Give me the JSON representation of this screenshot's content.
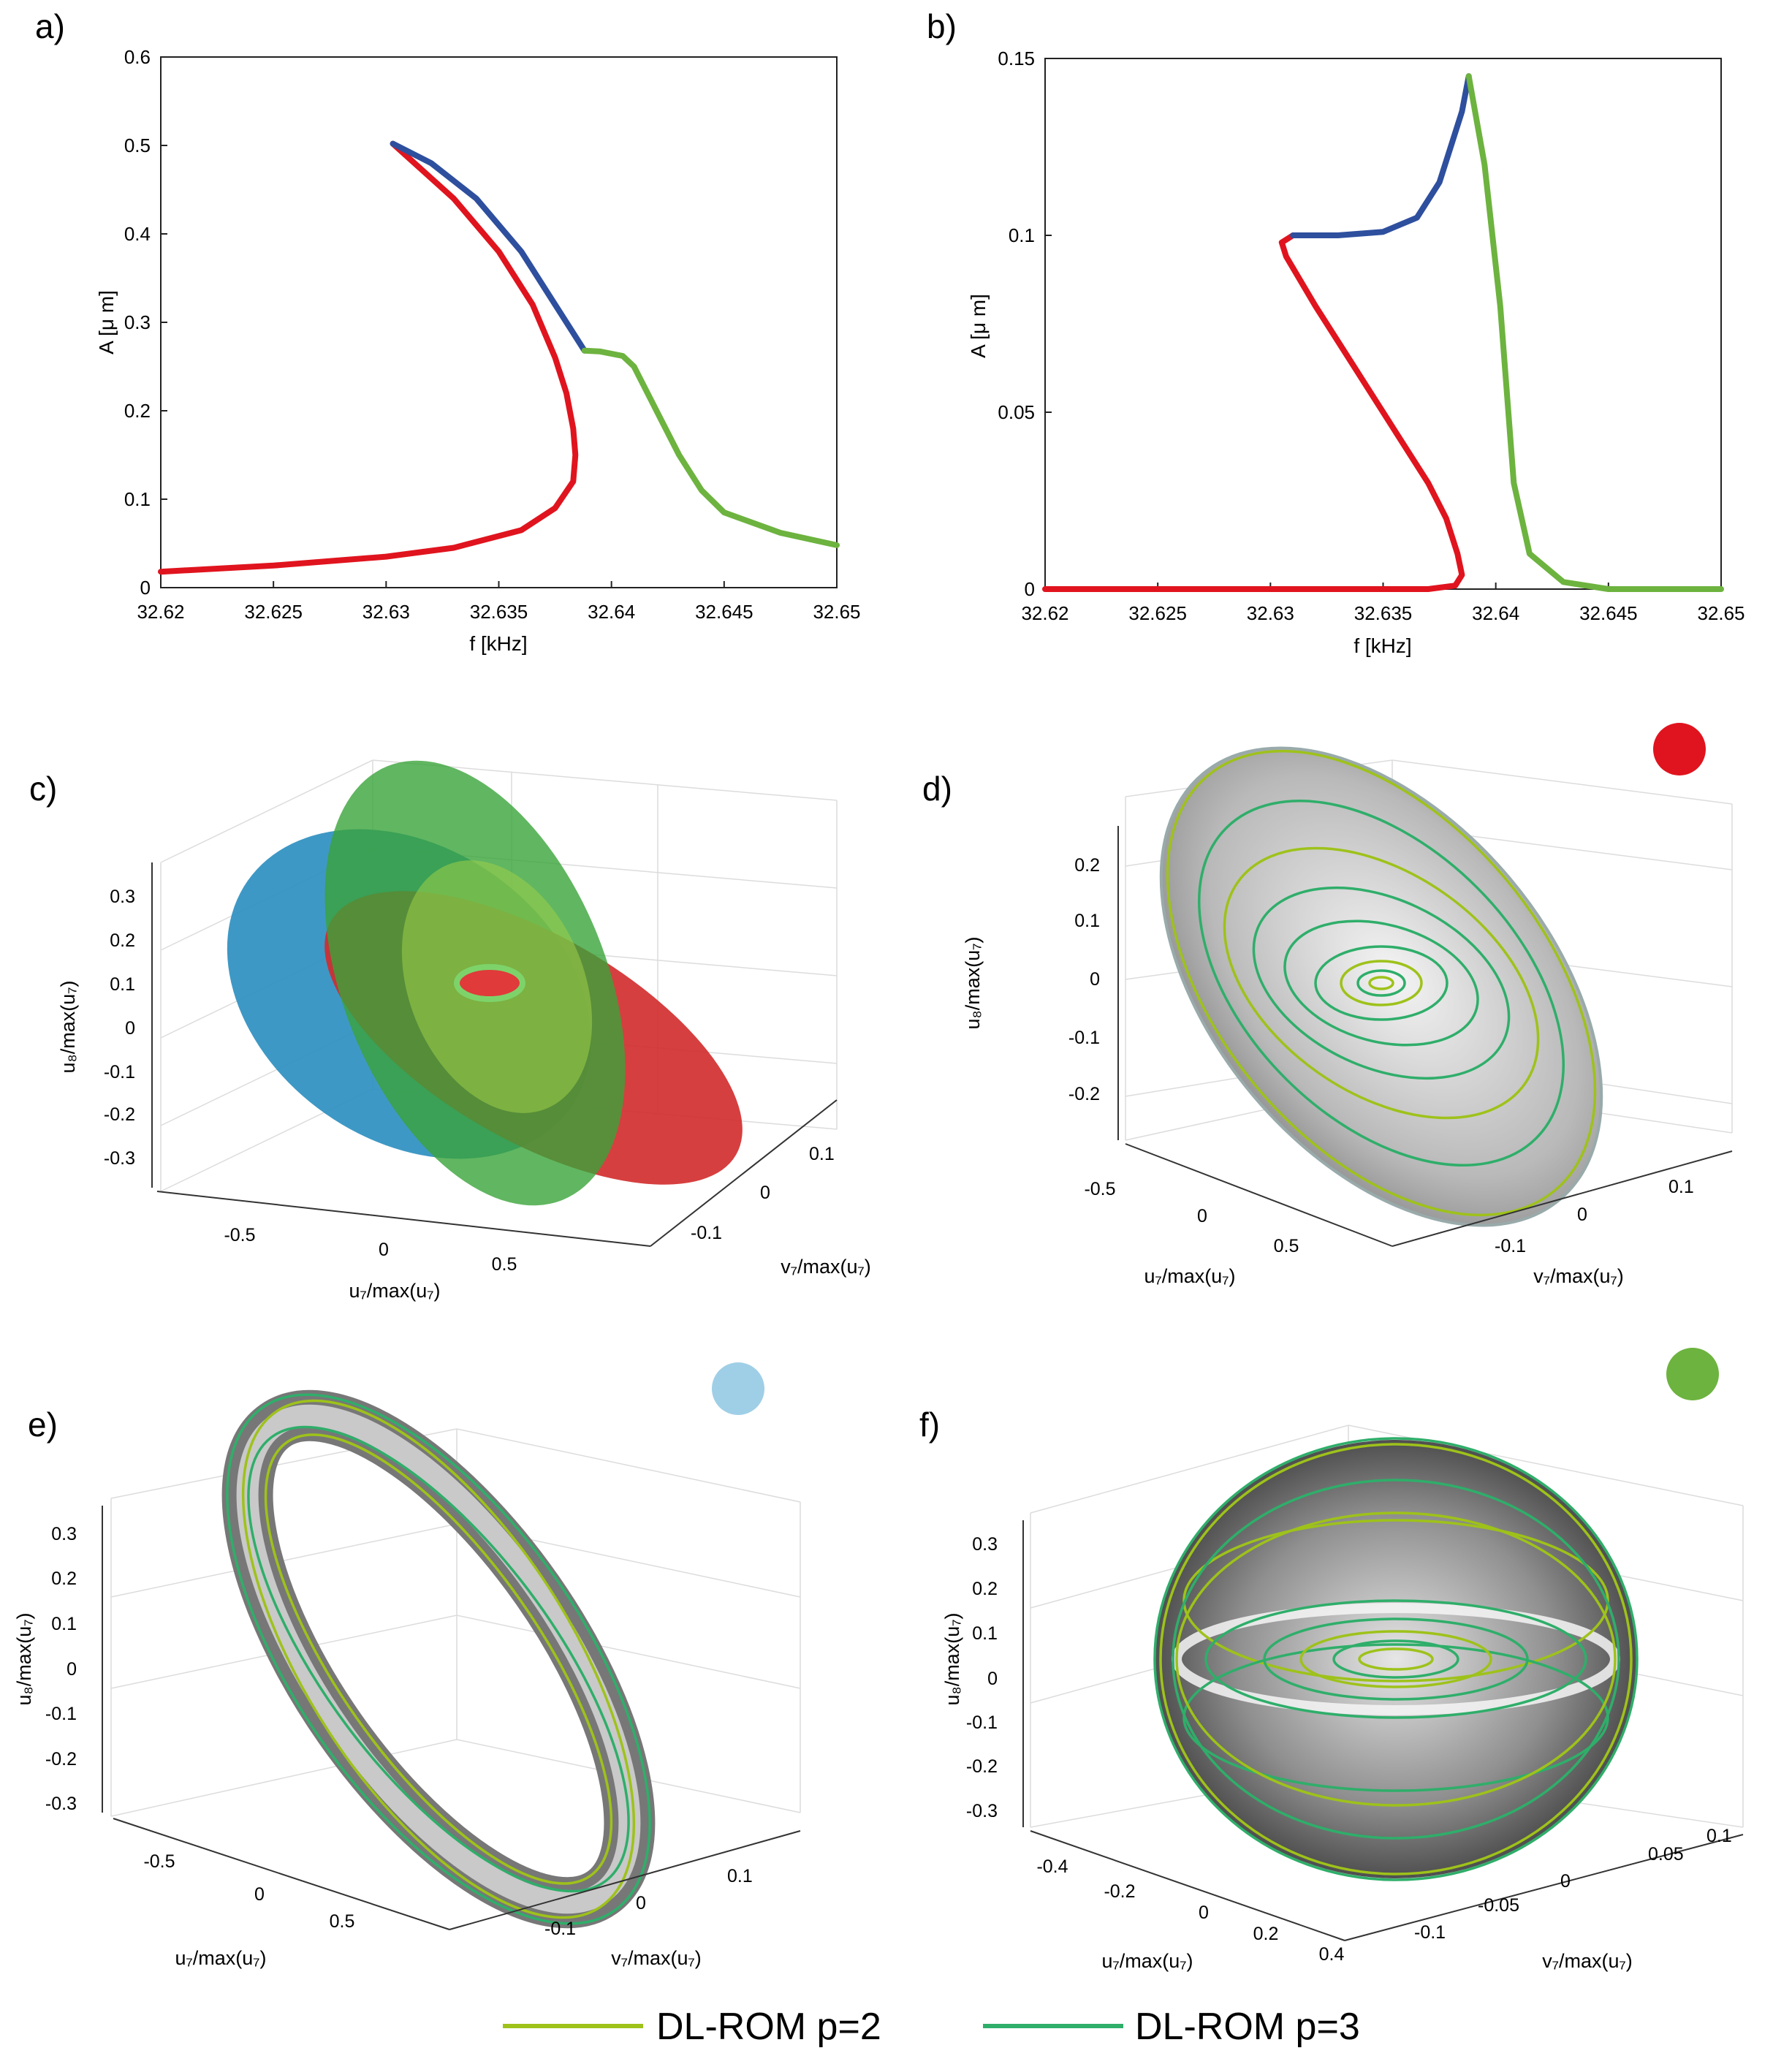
{
  "chart_data": [
    {
      "panel": "a)",
      "type": "line",
      "xlabel": "f [kHz]",
      "ylabel": "A [μ m]",
      "xlim": [
        32.62,
        32.65
      ],
      "ylim": [
        0,
        0.6
      ],
      "xticks": [
        "32.62",
        "32.625",
        "32.63",
        "32.635",
        "32.64",
        "32.645",
        "32.65"
      ],
      "yticks": [
        "0",
        "0.1",
        "0.2",
        "0.3",
        "0.4",
        "0.5",
        "0.6"
      ],
      "series": [
        {
          "name": "red",
          "color": "#e0141e",
          "x": [
            32.62,
            32.625,
            32.63,
            32.633,
            32.636,
            32.6375,
            32.6383,
            32.6384,
            32.6383,
            32.638,
            32.6375,
            32.6365,
            32.635,
            32.633,
            32.6303
          ],
          "y": [
            0.018,
            0.025,
            0.035,
            0.045,
            0.065,
            0.09,
            0.12,
            0.15,
            0.18,
            0.22,
            0.26,
            0.32,
            0.38,
            0.44,
            0.502
          ]
        },
        {
          "name": "blue",
          "color": "#2e4f9e",
          "x": [
            32.6303,
            32.632,
            32.634,
            32.636,
            32.6375,
            32.6388
          ],
          "y": [
            0.502,
            0.48,
            0.44,
            0.38,
            0.32,
            0.268
          ]
        },
        {
          "name": "green",
          "color": "#6db33f",
          "x": [
            32.6388,
            32.6395,
            32.6405,
            32.641,
            32.642,
            32.643,
            32.644,
            32.645,
            32.6475,
            32.65
          ],
          "y": [
            0.268,
            0.267,
            0.262,
            0.25,
            0.2,
            0.15,
            0.11,
            0.085,
            0.062,
            0.048
          ]
        }
      ]
    },
    {
      "panel": "b)",
      "type": "line",
      "xlabel": "f [kHz]",
      "ylabel": "A [μ m]",
      "xlim": [
        32.62,
        32.65
      ],
      "ylim": [
        0,
        0.15
      ],
      "xticks": [
        "32.62",
        "32.625",
        "32.63",
        "32.635",
        "32.64",
        "32.645",
        "32.65"
      ],
      "yticks": [
        "0",
        "0.05",
        "0.1",
        "0.15"
      ],
      "series": [
        {
          "name": "red",
          "color": "#e0141e",
          "x": [
            32.62,
            32.63,
            32.637,
            32.6382,
            32.6385,
            32.6383,
            32.6378,
            32.637,
            32.636,
            32.634,
            32.632,
            32.6307,
            32.6305,
            32.631
          ],
          "y": [
            0.0,
            0.0,
            0.0,
            0.001,
            0.004,
            0.01,
            0.02,
            0.03,
            0.04,
            0.06,
            0.08,
            0.094,
            0.098,
            0.1
          ]
        },
        {
          "name": "blue",
          "color": "#2e4f9e",
          "x": [
            32.631,
            32.633,
            32.635,
            32.6365,
            32.6375,
            32.6385,
            32.6388
          ],
          "y": [
            0.1,
            0.1,
            0.101,
            0.105,
            0.115,
            0.135,
            0.145
          ]
        },
        {
          "name": "green",
          "color": "#6db33f",
          "x": [
            32.6388,
            32.6395,
            32.6402,
            32.6408,
            32.6415,
            32.643,
            32.645,
            32.65
          ],
          "y": [
            0.145,
            0.12,
            0.08,
            0.03,
            0.01,
            0.002,
            0.0,
            0.0
          ]
        }
      ]
    },
    {
      "panel": "c)",
      "type": "surface3d",
      "colors": [
        "#e0141e",
        "#2e8fc0",
        "#3aa43a"
      ],
      "xlabel": "u₇/max(u₇)",
      "ylabel": "v₇/max(u₇)",
      "zlabel": "u₈/max(u₇)",
      "xticks": [
        "-0.5",
        "0",
        "0.5"
      ],
      "yticks": [
        "-0.1",
        "0",
        "0.1"
      ],
      "zticks": [
        "0.3",
        "0.2",
        "0.1",
        "0",
        "-0.1",
        "-0.2",
        "-0.3"
      ]
    },
    {
      "panel": "d)",
      "type": "surface3d",
      "marker_color": "#e0141e",
      "xlabel": "u₇/max(u₇)",
      "ylabel": "v₇/max(u₇)",
      "zlabel": "u₈/max(u₇)",
      "xticks": [
        "-0.5",
        "0",
        "0.5"
      ],
      "yticks": [
        "-0.1",
        "0",
        "0.1"
      ],
      "zticks": [
        "0.2",
        "0.1",
        "0",
        "-0.1",
        "-0.2"
      ]
    },
    {
      "panel": "e)",
      "type": "surface3d",
      "marker_color": "#9fcfe6",
      "xlabel": "u₇/max(u₇)",
      "ylabel": "v₇/max(u₇)",
      "zlabel": "u₈/max(u₇)",
      "xticks": [
        "-0.5",
        "0",
        "0.5"
      ],
      "yticks": [
        "-0.1",
        "0",
        "0.1"
      ],
      "zticks": [
        "0.3",
        "0.2",
        "0.1",
        "0",
        "-0.1",
        "-0.2",
        "-0.3"
      ]
    },
    {
      "panel": "f)",
      "type": "surface3d",
      "marker_color": "#6db33f",
      "xlabel": "u₇/max(u₇)",
      "ylabel": "v₇/max(u₇)",
      "zlabel": "u₈/max(u₇)",
      "xticks": [
        "-0.4",
        "-0.2",
        "0",
        "0.2",
        "0.4"
      ],
      "yticks": [
        "-0.1",
        "-0.05",
        "0",
        "0.05",
        "0.1"
      ],
      "zticks": [
        "0.3",
        "0.2",
        "0.1",
        "0",
        "-0.1",
        "-0.2",
        "-0.3"
      ]
    }
  ],
  "legend": [
    {
      "label": "DL-ROM p=2",
      "color": "#9ec21a"
    },
    {
      "label": "DL-ROM p=3",
      "color": "#2fae6a"
    }
  ]
}
